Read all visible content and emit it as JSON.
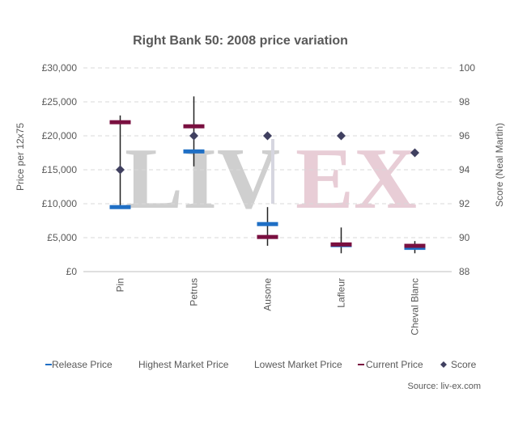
{
  "chart_data": {
    "type": "scatter",
    "title": "Right Bank 50: 2008 price variation",
    "categories": [
      "Pin",
      "Petrus",
      "Ausone",
      "Lafleur",
      "Cheval Blanc"
    ],
    "ylabel": "Price per 12x75",
    "y2label": "Score (Neal Martin)",
    "ylim": [
      0,
      30000
    ],
    "y2lim": [
      88,
      100
    ],
    "y_ticks": [
      "£0",
      "£5,000",
      "£10,000",
      "£15,000",
      "£20,000",
      "£25,000",
      "£30,000"
    ],
    "y2_ticks": [
      "88",
      "90",
      "92",
      "94",
      "96",
      "98",
      "100"
    ],
    "grid": true,
    "legend_position": "bottom",
    "series": [
      {
        "name": "Release Price",
        "values": [
          9500,
          17700,
          7000,
          3900,
          3500
        ],
        "color": "#1F6FC5"
      },
      {
        "name": "Highest Market Price",
        "values": [
          23000,
          25800,
          9500,
          6500,
          4500
        ],
        "color": "#222222"
      },
      {
        "name": "Lowest Market Price",
        "values": [
          9300,
          15500,
          3800,
          2700,
          2700
        ],
        "color": "#222222"
      },
      {
        "name": "Current Price",
        "values": [
          22000,
          21400,
          5100,
          4000,
          3800
        ],
        "color": "#7A1040"
      },
      {
        "name": "Score",
        "values": [
          94,
          96,
          96,
          96,
          95
        ],
        "axis": "secondary",
        "color": "#404060"
      }
    ]
  },
  "watermark": {
    "left": "LIV",
    "right": "EX"
  },
  "source": "Source: liv-ex.com"
}
